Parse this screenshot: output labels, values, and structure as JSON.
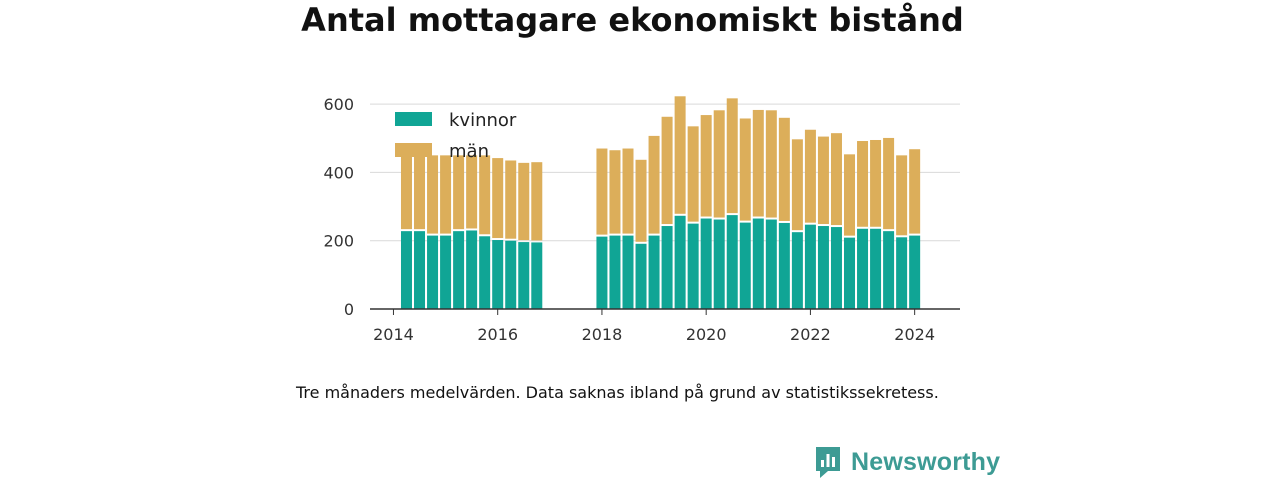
{
  "title": "Antal mottagare ekonomiskt bistånd",
  "caption": "Tre månaders medelvärden. Data saknas ibland på grund av statistikssekretess.",
  "brand": {
    "name": "Newsworthy",
    "icon": "newsworthy-logo-icon",
    "color": "#3d9b94"
  },
  "colors": {
    "kvinnor": "#10a595",
    "man": "#dcae5a",
    "grid": "#d9d9d9",
    "axis": "#333333"
  },
  "chart_data": {
    "type": "bar",
    "stacked": true,
    "title": "Antal mottagare ekonomiskt bistånd",
    "xlabel": "",
    "ylabel": "",
    "ylim": [
      0,
      700
    ],
    "yticks": [
      0,
      200,
      400,
      600
    ],
    "xlim": [
      2013.55,
      2024.87
    ],
    "xticks": [
      2014,
      2016,
      2018,
      2020,
      2022,
      2024
    ],
    "legend": "top-left",
    "grid": true,
    "x": [
      2014.25,
      2014.5,
      2014.75,
      2015.0,
      2015.25,
      2015.5,
      2015.75,
      2016.0,
      2016.25,
      2016.5,
      2016.75,
      2018.0,
      2018.25,
      2018.5,
      2018.75,
      2019.0,
      2019.25,
      2019.5,
      2019.75,
      2020.0,
      2020.25,
      2020.5,
      2020.75,
      2021.0,
      2021.25,
      2021.5,
      2021.75,
      2022.0,
      2022.25,
      2022.5,
      2022.75,
      2023.0,
      2023.25,
      2023.5,
      2023.75,
      2024.0
    ],
    "series": [
      {
        "name": "kvinnor",
        "values": [
          228,
          228,
          215,
          215,
          228,
          230,
          213,
          202,
          200,
          196,
          195,
          212,
          215,
          215,
          191,
          215,
          243,
          273,
          250,
          265,
          262,
          275,
          253,
          265,
          262,
          252,
          225,
          247,
          243,
          240,
          209,
          235,
          235,
          228,
          210,
          215
        ]
      },
      {
        "name": "män",
        "values": [
          222,
          222,
          235,
          235,
          222,
          220,
          237,
          240,
          235,
          232,
          235,
          258,
          250,
          255,
          246,
          292,
          320,
          350,
          285,
          303,
          320,
          342,
          305,
          318,
          320,
          308,
          272,
          278,
          262,
          275,
          244,
          257,
          260,
          273,
          240,
          253
        ]
      }
    ]
  }
}
